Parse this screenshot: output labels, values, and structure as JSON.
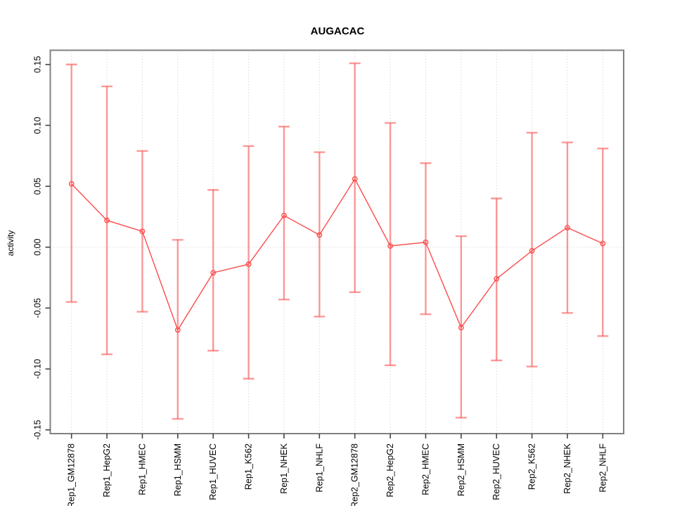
{
  "chart_data": {
    "type": "line",
    "title": "AUGACAC",
    "xlabel": "",
    "ylabel": "activity",
    "ylim": [
      -0.16,
      0.16
    ],
    "grid": "dotted vertical gridline per category plus dotted horizontal line at y=0",
    "legend_position": "none",
    "y_tick_labels": [
      "-0.15",
      "-0.10",
      "-0.05",
      "0.00",
      "0.05",
      "0.10",
      "0.15"
    ],
    "y_tick_values": [
      -0.15,
      -0.1,
      -0.05,
      0.0,
      0.05,
      0.1,
      0.15
    ],
    "categories": [
      "Rep1_GM12878",
      "Rep1_HepG2",
      "Rep1_HMEC",
      "Rep1_HSMM",
      "Rep1_HUVEC",
      "Rep1_K562",
      "Rep1_NHEK",
      "Rep1_NHLF",
      "Rep2_GM12878",
      "Rep2_HepG2",
      "Rep2_HMEC",
      "Rep2_HSMM",
      "Rep2_HUVEC",
      "Rep2_K562",
      "Rep2_NHEK",
      "Rep2_NHLF"
    ],
    "series": [
      {
        "name": "activity",
        "marker": "open-circle",
        "values": [
          0.052,
          0.022,
          0.013,
          -0.068,
          -0.021,
          -0.014,
          0.026,
          0.01,
          0.056,
          0.001,
          0.004,
          -0.066,
          -0.026,
          -0.003,
          0.016,
          0.003
        ],
        "err_high": [
          0.15,
          0.132,
          0.079,
          0.006,
          0.047,
          0.083,
          0.099,
          0.078,
          0.151,
          0.102,
          0.069,
          0.009,
          0.04,
          0.094,
          0.086,
          0.081
        ],
        "err_low": [
          -0.045,
          -0.088,
          -0.053,
          -0.141,
          -0.085,
          -0.108,
          -0.043,
          -0.057,
          -0.037,
          -0.097,
          -0.055,
          -0.14,
          -0.093,
          -0.098,
          -0.054,
          -0.073
        ]
      }
    ],
    "colors": {
      "series_line": "#fb4d4d",
      "error_bar": "#fb5a5a",
      "error_bar_opacity": 0.62,
      "gridline": "#d9d9d9",
      "plot_border": "#818181",
      "tick": "#444444",
      "label_text": "#000000"
    }
  },
  "layout_note": "R-style statistical plot, activity per cell line with error bars"
}
